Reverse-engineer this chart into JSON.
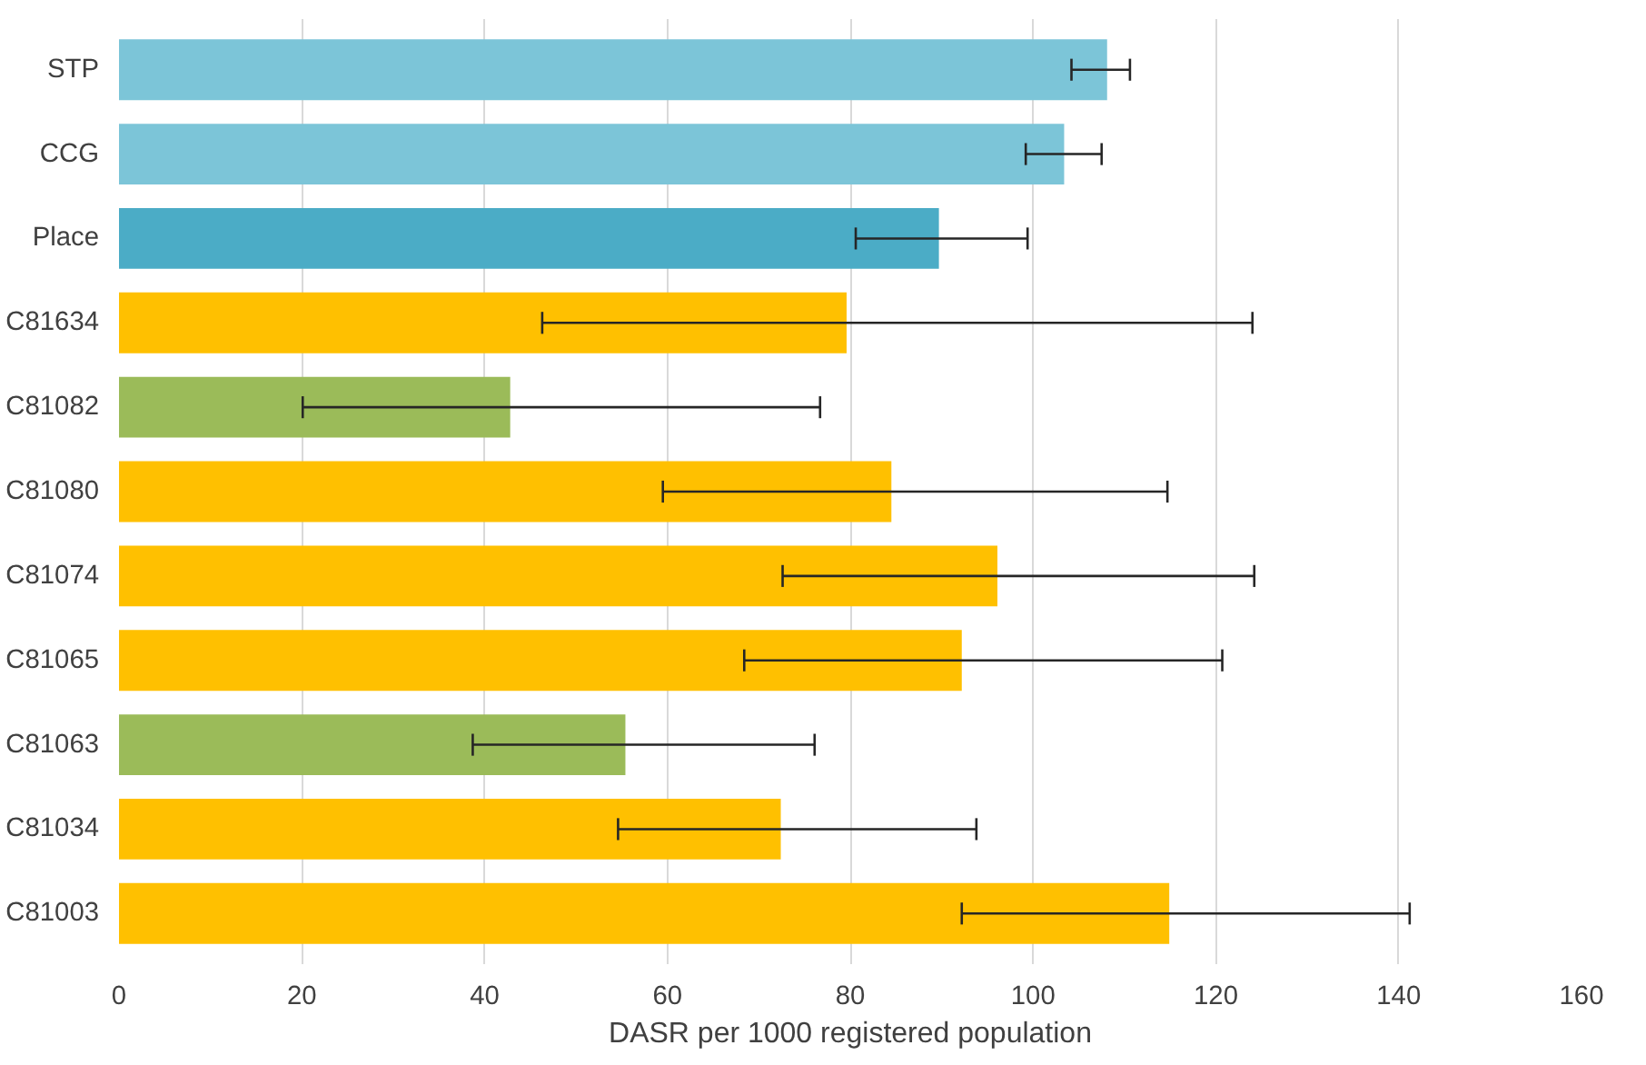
{
  "chart_data": {
    "type": "bar",
    "orientation": "horizontal",
    "xlabel": "DASR per 1000 registered population",
    "categories": [
      "STP",
      "CCG",
      "Place",
      "C81634",
      "C81082",
      "C81080",
      "C81074",
      "C81065",
      "C81063",
      "C81034",
      "C81003"
    ],
    "values": [
      108.1,
      103.4,
      89.7,
      79.6,
      42.8,
      84.5,
      96.1,
      92.2,
      55.4,
      72.4,
      114.9
    ],
    "colors": [
      "#7cc5d8",
      "#7cc5d8",
      "#4bacc6",
      "#ffc000",
      "#9bbb59",
      "#ffc000",
      "#ffc000",
      "#ffc000",
      "#9bbb59",
      "#ffc000",
      "#ffc000"
    ],
    "errors": [
      [
        104.2,
        110.6
      ],
      [
        99.2,
        107.5
      ],
      [
        80.6,
        99.4
      ],
      [
        46.3,
        124.0
      ],
      [
        20.1,
        76.7
      ],
      [
        59.5,
        114.7
      ],
      [
        72.6,
        124.2
      ],
      [
        68.4,
        120.7
      ],
      [
        38.7,
        76.1
      ],
      [
        54.6,
        93.8
      ],
      [
        92.2,
        141.2
      ]
    ],
    "xlim": [
      0,
      160
    ],
    "xticks": [
      0,
      20,
      40,
      60,
      80,
      100,
      120,
      140,
      160
    ],
    "grid": "x"
  }
}
